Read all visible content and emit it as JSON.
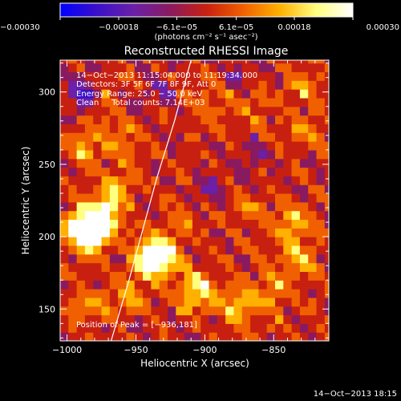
{
  "chart_data": {
    "type": "heatmap",
    "title": "Reconstructed RHESSI Image",
    "xlabel": "Heliocentric X (arcsec)",
    "ylabel": "Heliocentric Y (arcsec)",
    "xlim": [
      -1005,
      -810
    ],
    "ylim": [
      128,
      322
    ],
    "x_ticks": [
      -1000,
      -950,
      -900,
      -850
    ],
    "x_tick_labels": [
      "−1000",
      "−950",
      "−900",
      "−850"
    ],
    "y_ticks": [
      150,
      200,
      250,
      300
    ],
    "y_tick_labels": [
      "150",
      "200",
      "250",
      "300"
    ],
    "colorbar": {
      "range": [
        -0.0003,
        0.0003
      ],
      "ticks": [
        -0.0003,
        -0.00018,
        -6.1e-05,
        6.1e-05,
        0.00018,
        0.0003
      ],
      "tick_labels": [
        "−0.00030",
        "−0.00018",
        "−6.1e−05",
        "6.1e−05",
        "0.00018",
        "0.00030"
      ],
      "unit_label": "(photons cm⁻² s⁻¹ asec⁻²)",
      "colors": [
        "#0000ff",
        "#3a10c8",
        "#6a20a8",
        "#8a1a60",
        "#c82010",
        "#f06000",
        "#ffb000",
        "#ffff80",
        "#ffffff"
      ]
    },
    "annotations": [
      "14−Oct−2013 11:15:04.000 to 11:19:34.000",
      "Detectors: 3F 5F 6F 7F 8F 9F, Att 0",
      "Energy Range: 25.0 − 50.0 keV",
      "Clean     Total counts: 7.14E+03"
    ],
    "peak_label": "Position of Peak = [−936,181]",
    "peak": [
      -936,
      181
    ],
    "limb_points": [
      [
        -968,
        128
      ],
      [
        -955,
        170
      ],
      [
        -945,
        205
      ],
      [
        -935,
        240
      ],
      [
        -922,
        280
      ],
      [
        -910,
        322
      ]
    ],
    "hot_spots": [
      {
        "x": -975,
        "y": 215,
        "v": 0.00026
      },
      {
        "x": -990,
        "y": 205,
        "v": 0.0003
      },
      {
        "x": -985,
        "y": 200,
        "v": 0.00028
      },
      {
        "x": -935,
        "y": 185,
        "v": 0.0003
      },
      {
        "x": -945,
        "y": 178,
        "v": 0.00022
      },
      {
        "x": -910,
        "y": 160,
        "v": 0.00024
      },
      {
        "x": -880,
        "y": 150,
        "v": 0.0002
      },
      {
        "x": -855,
        "y": 160,
        "v": 0.00015
      },
      {
        "x": -840,
        "y": 205,
        "v": 0.00018
      },
      {
        "x": -835,
        "y": 180,
        "v": 0.00014
      },
      {
        "x": -965,
        "y": 235,
        "v": 0.00012
      },
      {
        "x": -990,
        "y": 260,
        "v": 0.00016
      },
      {
        "x": -960,
        "y": 265,
        "v": 0.0001
      },
      {
        "x": -980,
        "y": 290,
        "v": 0.00012
      },
      {
        "x": -960,
        "y": 155,
        "v": 0.00012
      },
      {
        "x": -990,
        "y": 150,
        "v": 0.00012
      },
      {
        "x": -870,
        "y": 215,
        "v": 0.0001
      },
      {
        "x": -900,
        "y": 290,
        "v": 8e-05
      },
      {
        "x": -870,
        "y": 285,
        "v": 8e-05
      },
      {
        "x": -830,
        "y": 300,
        "v": 0.0001
      },
      {
        "x": -830,
        "y": 270,
        "v": 0.0001
      },
      {
        "x": -920,
        "y": 210,
        "v": 8e-05
      }
    ],
    "cold_spots": [
      {
        "x": -990,
        "y": 295,
        "v": -0.00028
      },
      {
        "x": -900,
        "y": 230,
        "v": -0.00012
      },
      {
        "x": -880,
        "y": 310,
        "v": -0.0001
      },
      {
        "x": -870,
        "y": 255,
        "v": -0.0001
      },
      {
        "x": -935,
        "y": 300,
        "v": -0.0001
      }
    ]
  },
  "footer": {
    "timestamp": "14−Oct−2013 18:15"
  }
}
